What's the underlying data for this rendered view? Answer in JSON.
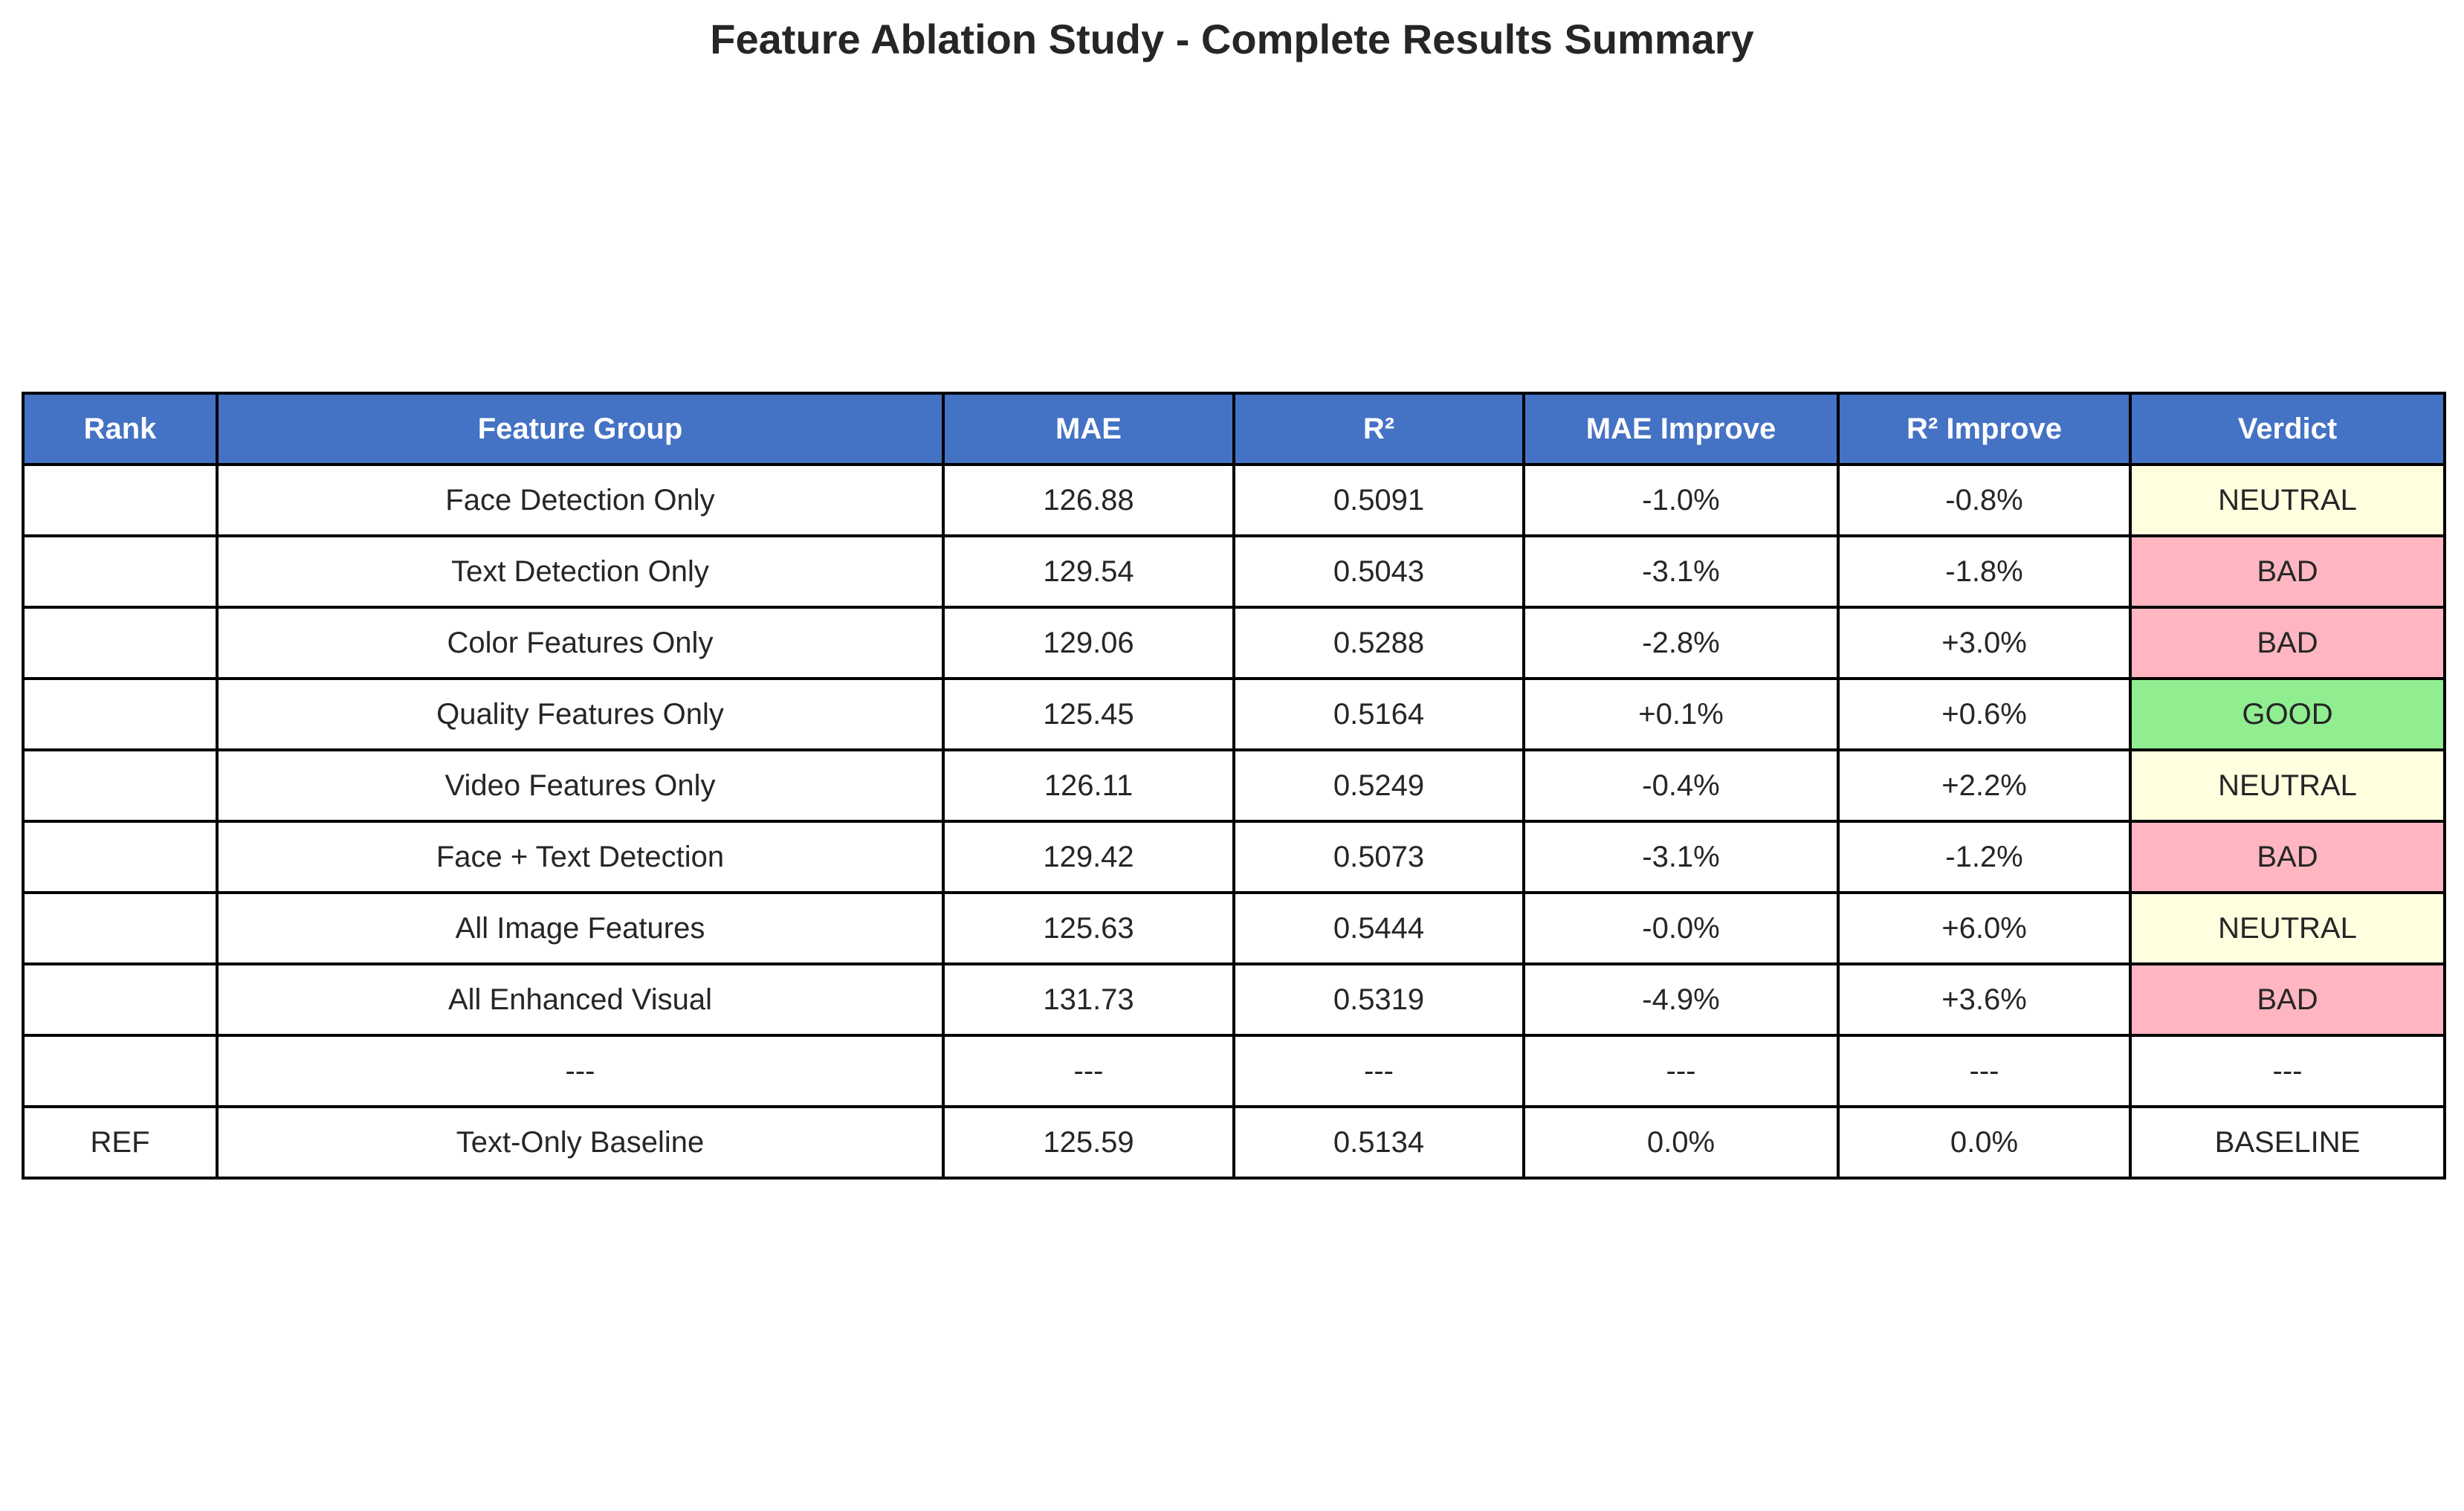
{
  "chart_data": {
    "type": "table",
    "title": "Feature Ablation Study - Complete Results Summary",
    "columns": [
      "Rank",
      "Feature Group",
      "MAE",
      "R²",
      "MAE Improve",
      "R² Improve",
      "Verdict"
    ],
    "rows": [
      [
        "",
        "Face Detection Only",
        "126.88",
        "0.5091",
        "-1.0%",
        "-0.8%",
        "NEUTRAL"
      ],
      [
        "",
        "Text Detection Only",
        "129.54",
        "0.5043",
        "-3.1%",
        "-1.8%",
        "BAD"
      ],
      [
        "",
        "Color Features Only",
        "129.06",
        "0.5288",
        "-2.8%",
        "+3.0%",
        "BAD"
      ],
      [
        "",
        "Quality Features Only",
        "125.45",
        "0.5164",
        "+0.1%",
        "+0.6%",
        "GOOD"
      ],
      [
        "",
        "Video Features Only",
        "126.11",
        "0.5249",
        "-0.4%",
        "+2.2%",
        "NEUTRAL"
      ],
      [
        "",
        "Face + Text Detection",
        "129.42",
        "0.5073",
        "-3.1%",
        "-1.2%",
        "BAD"
      ],
      [
        "",
        "All Image Features",
        "125.63",
        "0.5444",
        "-0.0%",
        "+6.0%",
        "NEUTRAL"
      ],
      [
        "",
        "All Enhanced Visual",
        "131.73",
        "0.5319",
        "-4.9%",
        "+3.6%",
        "BAD"
      ],
      [
        "",
        "---",
        "---",
        "---",
        "---",
        "---",
        "---"
      ],
      [
        "REF",
        "Text-Only Baseline",
        "125.59",
        "0.5134",
        "0.0%",
        "0.0%",
        "BASELINE"
      ]
    ],
    "colors": {
      "header_background": "#4472c4",
      "header_text": "#ffffff",
      "verdict": {
        "NEUTRAL": "#ffffe0",
        "BAD": "#ffb6c1",
        "GOOD": "#90ee90"
      }
    }
  }
}
